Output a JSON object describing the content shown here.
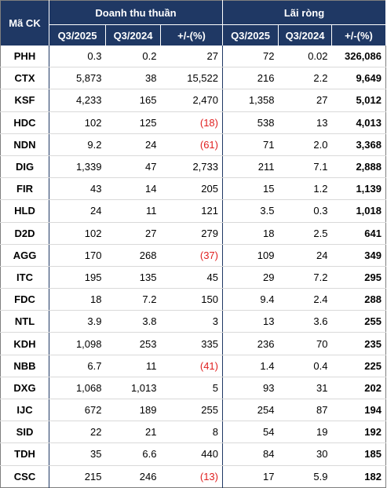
{
  "header": {
    "code_label": "Mã CK",
    "revenue_group": "Doanh thu thuần",
    "profit_group": "Lãi ròng",
    "cols": [
      "Q3/2025",
      "Q3/2024",
      "+/-(%)",
      "Q3/2025",
      "Q3/2024",
      "+/-(%)"
    ]
  },
  "rows": [
    {
      "code": "PHH",
      "rev_q3_2025": "0.3",
      "rev_q3_2024": "0.2",
      "rev_change": "27",
      "profit_q3_2025": "72",
      "profit_q3_2024": "0.02",
      "profit_change": "326,086"
    },
    {
      "code": "CTX",
      "rev_q3_2025": "5,873",
      "rev_q3_2024": "38",
      "rev_change": "15,522",
      "profit_q3_2025": "216",
      "profit_q3_2024": "2.2",
      "profit_change": "9,649"
    },
    {
      "code": "KSF",
      "rev_q3_2025": "4,233",
      "rev_q3_2024": "165",
      "rev_change": "2,470",
      "profit_q3_2025": "1,358",
      "profit_q3_2024": "27",
      "profit_change": "5,012"
    },
    {
      "code": "HDC",
      "rev_q3_2025": "102",
      "rev_q3_2024": "125",
      "rev_change": "(18)",
      "profit_q3_2025": "538",
      "profit_q3_2024": "13",
      "profit_change": "4,013"
    },
    {
      "code": "NDN",
      "rev_q3_2025": "9.2",
      "rev_q3_2024": "24",
      "rev_change": "(61)",
      "profit_q3_2025": "71",
      "profit_q3_2024": "2.0",
      "profit_change": "3,368"
    },
    {
      "code": "DIG",
      "rev_q3_2025": "1,339",
      "rev_q3_2024": "47",
      "rev_change": "2,733",
      "profit_q3_2025": "211",
      "profit_q3_2024": "7.1",
      "profit_change": "2,888"
    },
    {
      "code": "FIR",
      "rev_q3_2025": "43",
      "rev_q3_2024": "14",
      "rev_change": "205",
      "profit_q3_2025": "15",
      "profit_q3_2024": "1.2",
      "profit_change": "1,139"
    },
    {
      "code": "HLD",
      "rev_q3_2025": "24",
      "rev_q3_2024": "11",
      "rev_change": "121",
      "profit_q3_2025": "3.5",
      "profit_q3_2024": "0.3",
      "profit_change": "1,018"
    },
    {
      "code": "D2D",
      "rev_q3_2025": "102",
      "rev_q3_2024": "27",
      "rev_change": "279",
      "profit_q3_2025": "18",
      "profit_q3_2024": "2.5",
      "profit_change": "641"
    },
    {
      "code": "AGG",
      "rev_q3_2025": "170",
      "rev_q3_2024": "268",
      "rev_change": "(37)",
      "profit_q3_2025": "109",
      "profit_q3_2024": "24",
      "profit_change": "349"
    },
    {
      "code": "ITC",
      "rev_q3_2025": "195",
      "rev_q3_2024": "135",
      "rev_change": "45",
      "profit_q3_2025": "29",
      "profit_q3_2024": "7.2",
      "profit_change": "295"
    },
    {
      "code": "FDC",
      "rev_q3_2025": "18",
      "rev_q3_2024": "7.2",
      "rev_change": "150",
      "profit_q3_2025": "9.4",
      "profit_q3_2024": "2.4",
      "profit_change": "288"
    },
    {
      "code": "NTL",
      "rev_q3_2025": "3.9",
      "rev_q3_2024": "3.8",
      "rev_change": "3",
      "profit_q3_2025": "13",
      "profit_q3_2024": "3.6",
      "profit_change": "255"
    },
    {
      "code": "KDH",
      "rev_q3_2025": "1,098",
      "rev_q3_2024": "253",
      "rev_change": "335",
      "profit_q3_2025": "236",
      "profit_q3_2024": "70",
      "profit_change": "235"
    },
    {
      "code": "NBB",
      "rev_q3_2025": "6.7",
      "rev_q3_2024": "11",
      "rev_change": "(41)",
      "profit_q3_2025": "1.4",
      "profit_q3_2024": "0.4",
      "profit_change": "225"
    },
    {
      "code": "DXG",
      "rev_q3_2025": "1,068",
      "rev_q3_2024": "1,013",
      "rev_change": "5",
      "profit_q3_2025": "93",
      "profit_q3_2024": "31",
      "profit_change": "202"
    },
    {
      "code": "IJC",
      "rev_q3_2025": "672",
      "rev_q3_2024": "189",
      "rev_change": "255",
      "profit_q3_2025": "254",
      "profit_q3_2024": "87",
      "profit_change": "194"
    },
    {
      "code": "SID",
      "rev_q3_2025": "22",
      "rev_q3_2024": "21",
      "rev_change": "8",
      "profit_q3_2025": "54",
      "profit_q3_2024": "19",
      "profit_change": "192"
    },
    {
      "code": "TDH",
      "rev_q3_2025": "35",
      "rev_q3_2024": "6.6",
      "rev_change": "440",
      "profit_q3_2025": "84",
      "profit_q3_2024": "30",
      "profit_change": "185"
    },
    {
      "code": "CSC",
      "rev_q3_2025": "215",
      "rev_q3_2024": "246",
      "rev_change": "(13)",
      "profit_q3_2025": "17",
      "profit_q3_2024": "5.9",
      "profit_change": "182"
    }
  ],
  "colors": {
    "header_bg": "#1f3864",
    "header_text": "#ffffff",
    "negative_text": "#e02020"
  }
}
